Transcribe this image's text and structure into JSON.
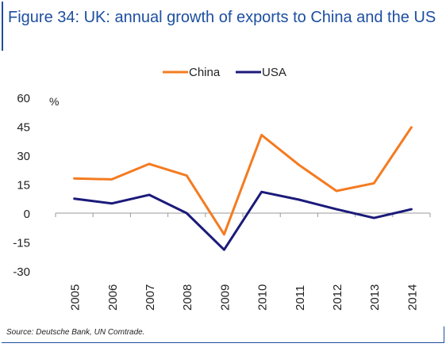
{
  "title": "Figure 34: UK: annual growth of exports to China and the US",
  "source": "Source: Deutsche Bank, UN Comtrade.",
  "chart_data": {
    "type": "line",
    "categories": [
      "2005",
      "2006",
      "2007",
      "2008",
      "2009",
      "2010",
      "2011",
      "2012",
      "2013",
      "2014"
    ],
    "series": [
      {
        "name": "China",
        "color": "#f47b20",
        "values": [
          18,
          17.5,
          25.5,
          19.5,
          -11,
          40.5,
          25,
          11.5,
          15.5,
          44.5
        ]
      },
      {
        "name": "USA",
        "color": "#1b1a7a",
        "values": [
          7.5,
          5,
          9.5,
          0,
          -19,
          11,
          7,
          2,
          -2.5,
          2
        ]
      }
    ],
    "ylim": [
      -30,
      60
    ],
    "yticks": [
      -30,
      -15,
      0,
      15,
      30,
      45,
      60
    ],
    "yunit": "%",
    "legend_position": "top-center",
    "grid": false
  }
}
